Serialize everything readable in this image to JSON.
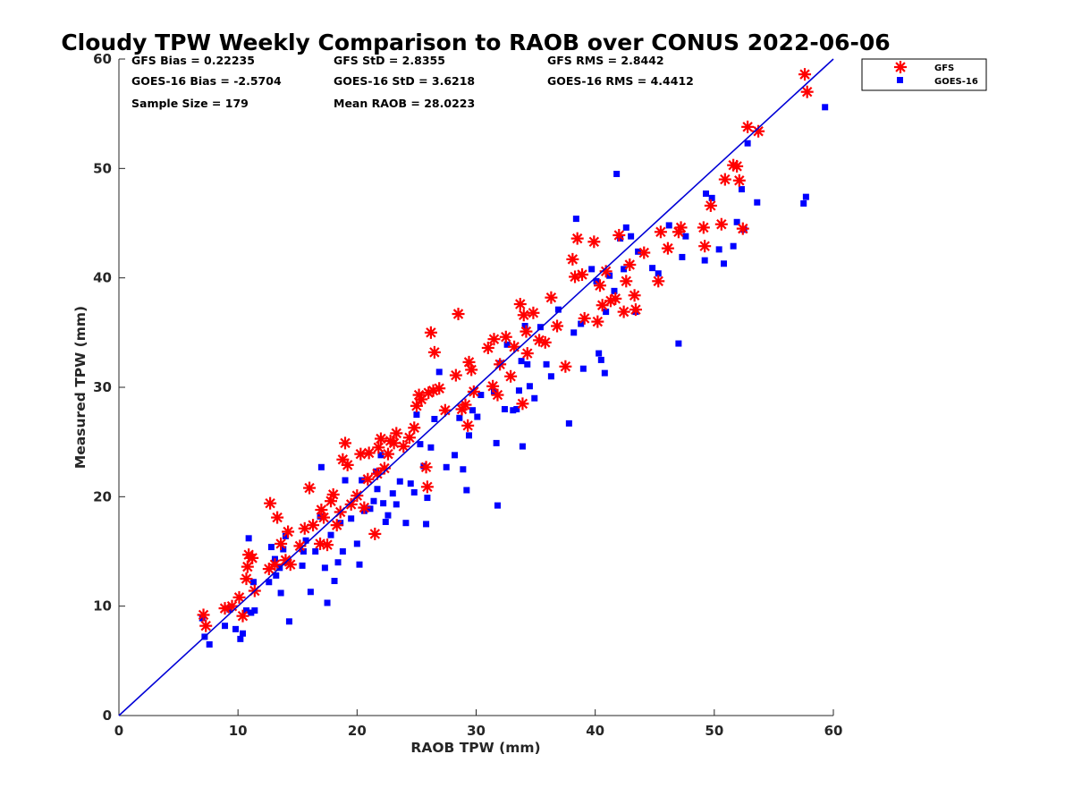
{
  "chart_data": {
    "type": "scatter",
    "title": "Cloudy TPW Weekly Comparison to RAOB over CONUS 2022-06-06",
    "xlabel": "RAOB TPW (mm)",
    "ylabel": "Measured TPW (mm)",
    "xlim": [
      0,
      60
    ],
    "ylim": [
      0,
      60
    ],
    "xticks": [
      "0",
      "10",
      "20",
      "30",
      "40",
      "50",
      "60"
    ],
    "yticks": [
      "0",
      "10",
      "20",
      "30",
      "40",
      "50",
      "60"
    ],
    "grid": false,
    "legend_placement": "outside-top-right",
    "reference_line": {
      "x": [
        0,
        60
      ],
      "y": [
        0,
        60
      ],
      "color": "#0000d6"
    },
    "stats": {
      "gfs_bias": "GFS Bias = 0.22235",
      "goes_bias": "GOES-16 Bias = -2.5704",
      "sample_size": "Sample Size = 179",
      "gfs_std": "GFS StD = 2.8355",
      "goes_std": "GOES-16 StD = 3.6218",
      "mean_raob": "Mean RAOB = 28.0223",
      "gfs_rms": "GFS RMS = 2.8442",
      "goes_rms": "GOES-16 RMS = 4.4412"
    },
    "series": [
      {
        "name": "GFS",
        "marker": "asterisk",
        "color": "#ff0000",
        "points": [
          [
            7.1,
            9.2
          ],
          [
            7.3,
            8.2
          ],
          [
            8.9,
            9.8
          ],
          [
            9.5,
            10.0
          ],
          [
            10.1,
            10.8
          ],
          [
            10.4,
            9.1
          ],
          [
            10.7,
            12.5
          ],
          [
            10.8,
            13.6
          ],
          [
            10.9,
            14.7
          ],
          [
            11.2,
            14.4
          ],
          [
            11.4,
            11.4
          ],
          [
            12.6,
            13.4
          ],
          [
            12.7,
            19.4
          ],
          [
            13.1,
            13.8
          ],
          [
            13.3,
            18.1
          ],
          [
            13.6,
            15.7
          ],
          [
            14.0,
            14.2
          ],
          [
            14.2,
            16.8
          ],
          [
            14.4,
            13.8
          ],
          [
            15.2,
            15.5
          ],
          [
            15.6,
            17.1
          ],
          [
            16.0,
            20.8
          ],
          [
            16.3,
            17.4
          ],
          [
            16.9,
            15.7
          ],
          [
            17.0,
            18.8
          ],
          [
            17.2,
            18.1
          ],
          [
            17.5,
            15.6
          ],
          [
            17.8,
            19.6
          ],
          [
            18.0,
            20.2
          ],
          [
            18.3,
            17.4
          ],
          [
            18.6,
            18.6
          ],
          [
            18.8,
            23.4
          ],
          [
            19.0,
            24.9
          ],
          [
            19.2,
            22.9
          ],
          [
            19.5,
            19.3
          ],
          [
            20.0,
            20.1
          ],
          [
            20.3,
            23.9
          ],
          [
            20.6,
            19.0
          ],
          [
            20.9,
            21.6
          ],
          [
            21.0,
            24.0
          ],
          [
            21.5,
            16.6
          ],
          [
            21.7,
            22.1
          ],
          [
            21.8,
            24.5
          ],
          [
            22.0,
            25.3
          ],
          [
            22.3,
            22.6
          ],
          [
            22.6,
            23.9
          ],
          [
            22.8,
            25.1
          ],
          [
            23.1,
            24.9
          ],
          [
            23.3,
            25.8
          ],
          [
            23.9,
            24.6
          ],
          [
            24.4,
            25.4
          ],
          [
            24.8,
            26.3
          ],
          [
            25.0,
            28.3
          ],
          [
            25.2,
            29.3
          ],
          [
            25.4,
            28.9
          ],
          [
            25.8,
            22.7
          ],
          [
            25.9,
            20.9
          ],
          [
            26.0,
            29.5
          ],
          [
            26.2,
            35.0
          ],
          [
            26.4,
            29.7
          ],
          [
            26.5,
            33.2
          ],
          [
            26.9,
            29.9
          ],
          [
            27.4,
            27.9
          ],
          [
            28.3,
            31.1
          ],
          [
            28.5,
            36.7
          ],
          [
            28.8,
            28.0
          ],
          [
            29.1,
            28.4
          ],
          [
            29.3,
            26.5
          ],
          [
            29.4,
            32.3
          ],
          [
            29.6,
            31.6
          ],
          [
            29.8,
            29.6
          ],
          [
            31.0,
            33.6
          ],
          [
            31.4,
            30.1
          ],
          [
            31.5,
            34.4
          ],
          [
            31.8,
            29.3
          ],
          [
            32.0,
            32.1
          ],
          [
            32.5,
            34.6
          ],
          [
            32.9,
            31.0
          ],
          [
            33.2,
            33.7
          ],
          [
            33.7,
            37.6
          ],
          [
            33.9,
            28.5
          ],
          [
            34.0,
            36.6
          ],
          [
            34.2,
            35.1
          ],
          [
            34.3,
            33.1
          ],
          [
            34.8,
            36.8
          ],
          [
            35.3,
            34.3
          ],
          [
            35.8,
            34.1
          ],
          [
            36.3,
            38.2
          ],
          [
            36.8,
            35.6
          ],
          [
            37.5,
            31.9
          ],
          [
            38.1,
            41.7
          ],
          [
            38.3,
            40.1
          ],
          [
            38.5,
            43.6
          ],
          [
            38.9,
            40.3
          ],
          [
            39.1,
            36.3
          ],
          [
            39.9,
            43.3
          ],
          [
            40.2,
            36.0
          ],
          [
            40.4,
            39.3
          ],
          [
            40.6,
            37.5
          ],
          [
            40.9,
            40.6
          ],
          [
            41.3,
            37.9
          ],
          [
            41.7,
            38.1
          ],
          [
            42.0,
            43.9
          ],
          [
            42.4,
            36.9
          ],
          [
            42.6,
            39.7
          ],
          [
            42.9,
            41.2
          ],
          [
            43.3,
            38.4
          ],
          [
            43.4,
            37.1
          ],
          [
            44.1,
            42.3
          ],
          [
            45.3,
            39.7
          ],
          [
            45.5,
            44.2
          ],
          [
            46.1,
            42.7
          ],
          [
            47.0,
            44.2
          ],
          [
            47.2,
            44.6
          ],
          [
            49.1,
            44.6
          ],
          [
            49.2,
            42.9
          ],
          [
            49.7,
            46.6
          ],
          [
            50.6,
            44.9
          ],
          [
            50.9,
            49.0
          ],
          [
            51.6,
            50.3
          ],
          [
            51.9,
            50.2
          ],
          [
            52.1,
            48.9
          ],
          [
            52.4,
            44.5
          ],
          [
            52.8,
            53.8
          ],
          [
            53.7,
            53.4
          ],
          [
            57.6,
            58.6
          ],
          [
            57.8,
            57.0
          ]
        ]
      },
      {
        "name": "GOES-16",
        "marker": "square",
        "color": "#0000ff",
        "points": [
          [
            7.0,
            8.9
          ],
          [
            7.2,
            7.2
          ],
          [
            7.6,
            6.5
          ],
          [
            8.9,
            8.2
          ],
          [
            9.3,
            9.7
          ],
          [
            9.8,
            7.9
          ],
          [
            10.2,
            7.0
          ],
          [
            10.4,
            7.5
          ],
          [
            10.7,
            9.6
          ],
          [
            10.9,
            16.2
          ],
          [
            11.1,
            9.4
          ],
          [
            11.3,
            12.2
          ],
          [
            11.4,
            9.6
          ],
          [
            12.6,
            12.2
          ],
          [
            12.8,
            15.4
          ],
          [
            13.1,
            14.3
          ],
          [
            13.2,
            12.8
          ],
          [
            13.5,
            13.5
          ],
          [
            13.6,
            11.2
          ],
          [
            13.8,
            15.2
          ],
          [
            14.0,
            16.4
          ],
          [
            14.1,
            14.0
          ],
          [
            14.3,
            8.6
          ],
          [
            15.4,
            13.7
          ],
          [
            15.5,
            15.0
          ],
          [
            15.7,
            16.0
          ],
          [
            16.1,
            11.3
          ],
          [
            16.5,
            15.0
          ],
          [
            16.9,
            18.2
          ],
          [
            17.0,
            22.7
          ],
          [
            17.3,
            13.5
          ],
          [
            17.5,
            10.3
          ],
          [
            17.8,
            16.5
          ],
          [
            18.1,
            12.3
          ],
          [
            18.4,
            14.0
          ],
          [
            18.6,
            17.6
          ],
          [
            18.8,
            15.0
          ],
          [
            19.0,
            21.5
          ],
          [
            19.5,
            18.0
          ],
          [
            20.0,
            15.7
          ],
          [
            20.2,
            13.8
          ],
          [
            20.4,
            21.5
          ],
          [
            20.6,
            18.7
          ],
          [
            21.1,
            18.9
          ],
          [
            21.4,
            19.6
          ],
          [
            21.6,
            22.3
          ],
          [
            21.7,
            20.7
          ],
          [
            22.0,
            23.8
          ],
          [
            22.2,
            19.4
          ],
          [
            22.4,
            17.7
          ],
          [
            22.6,
            18.3
          ],
          [
            23.0,
            20.3
          ],
          [
            23.3,
            19.3
          ],
          [
            23.6,
            21.4
          ],
          [
            24.1,
            17.6
          ],
          [
            24.5,
            21.2
          ],
          [
            24.8,
            20.4
          ],
          [
            25.0,
            27.5
          ],
          [
            25.3,
            24.8
          ],
          [
            25.6,
            22.8
          ],
          [
            25.8,
            17.5
          ],
          [
            25.9,
            19.9
          ],
          [
            26.2,
            24.5
          ],
          [
            26.5,
            27.1
          ],
          [
            26.9,
            31.4
          ],
          [
            27.5,
            22.7
          ],
          [
            28.2,
            23.8
          ],
          [
            28.6,
            27.2
          ],
          [
            28.9,
            22.5
          ],
          [
            29.2,
            20.6
          ],
          [
            29.4,
            25.6
          ],
          [
            29.7,
            27.9
          ],
          [
            30.1,
            27.3
          ],
          [
            30.4,
            29.3
          ],
          [
            31.5,
            29.6
          ],
          [
            31.7,
            24.9
          ],
          [
            31.8,
            19.2
          ],
          [
            32.0,
            32.2
          ],
          [
            32.4,
            28.0
          ],
          [
            32.6,
            33.9
          ],
          [
            33.1,
            27.9
          ],
          [
            33.4,
            28.0
          ],
          [
            33.6,
            29.7
          ],
          [
            33.8,
            32.4
          ],
          [
            33.9,
            24.6
          ],
          [
            34.1,
            35.6
          ],
          [
            34.3,
            32.1
          ],
          [
            34.5,
            30.1
          ],
          [
            34.9,
            29.0
          ],
          [
            35.4,
            35.5
          ],
          [
            35.9,
            32.1
          ],
          [
            36.3,
            31.0
          ],
          [
            36.9,
            37.1
          ],
          [
            37.8,
            26.7
          ],
          [
            38.2,
            35.0
          ],
          [
            38.4,
            45.4
          ],
          [
            38.8,
            35.8
          ],
          [
            39.0,
            31.7
          ],
          [
            39.7,
            40.8
          ],
          [
            40.1,
            39.7
          ],
          [
            40.3,
            33.1
          ],
          [
            40.5,
            32.5
          ],
          [
            40.8,
            31.3
          ],
          [
            40.9,
            36.9
          ],
          [
            41.2,
            40.2
          ],
          [
            41.6,
            38.8
          ],
          [
            41.8,
            49.5
          ],
          [
            42.1,
            43.6
          ],
          [
            42.4,
            40.8
          ],
          [
            42.6,
            44.6
          ],
          [
            43.0,
            43.8
          ],
          [
            43.4,
            36.9
          ],
          [
            43.6,
            42.4
          ],
          [
            44.8,
            40.9
          ],
          [
            45.3,
            40.4
          ],
          [
            46.2,
            44.8
          ],
          [
            47.0,
            34.0
          ],
          [
            47.3,
            41.9
          ],
          [
            47.6,
            43.8
          ],
          [
            49.2,
            41.6
          ],
          [
            49.3,
            47.7
          ],
          [
            49.8,
            47.3
          ],
          [
            50.4,
            42.6
          ],
          [
            50.8,
            41.3
          ],
          [
            51.6,
            42.9
          ],
          [
            51.9,
            45.1
          ],
          [
            52.3,
            48.1
          ],
          [
            52.5,
            44.4
          ],
          [
            52.8,
            52.3
          ],
          [
            53.6,
            46.9
          ],
          [
            57.5,
            46.8
          ],
          [
            57.7,
            47.4
          ],
          [
            59.3,
            55.6
          ]
        ]
      }
    ]
  }
}
